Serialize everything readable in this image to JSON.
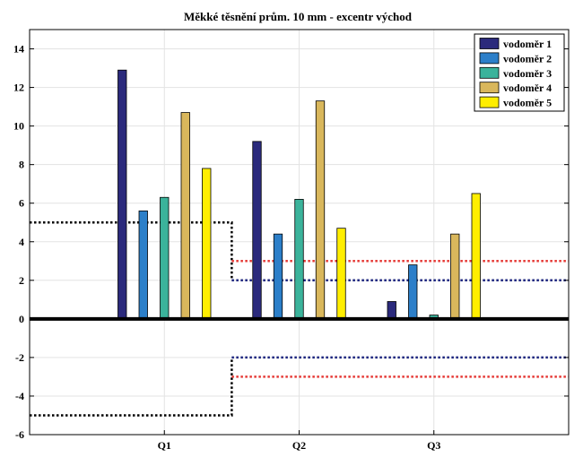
{
  "chart_data": {
    "type": "bar",
    "title": "Měkké těsnění prům. 10 mm - excentr východ",
    "xlabel": "",
    "ylabel": "",
    "categories": [
      "Q1",
      "Q2",
      "Q3"
    ],
    "ylim": [
      -6,
      15
    ],
    "yticks": [
      -6,
      -4,
      -2,
      0,
      2,
      4,
      6,
      8,
      10,
      12,
      14
    ],
    "grid": true,
    "legend_position": "top-right",
    "series": [
      {
        "name": "vodoměr 1",
        "color": "#2b2a7c",
        "values": [
          12.9,
          9.2,
          0.9
        ]
      },
      {
        "name": "vodoměr 2",
        "color": "#2c7fc9",
        "values": [
          5.6,
          4.4,
          2.8
        ]
      },
      {
        "name": "vodoměr 3",
        "color": "#3bb39b",
        "values": [
          6.3,
          6.2,
          0.2
        ]
      },
      {
        "name": "vodoměr 4",
        "color": "#d9b75c",
        "values": [
          10.7,
          11.3,
          4.4
        ]
      },
      {
        "name": "vodoměr 5",
        "color": "#ffee00",
        "values": [
          7.8,
          4.7,
          6.5
        ]
      }
    ],
    "limit_lines": [
      {
        "color": "#000000",
        "style": "dotted",
        "segments": [
          {
            "x_from": "start",
            "x_to": "Q1.5",
            "upper": 5,
            "lower": -5
          }
        ]
      },
      {
        "color": "#1a237e",
        "style": "dotted",
        "segments": [
          {
            "x_from": "Q1.5",
            "x_to": "end",
            "upper": 2,
            "lower": -2
          }
        ]
      },
      {
        "color": "#e53935",
        "style": "dotted",
        "segments": [
          {
            "x_from": "Q1.5",
            "x_to": "end",
            "upper": 3,
            "lower": -3
          }
        ]
      }
    ]
  }
}
